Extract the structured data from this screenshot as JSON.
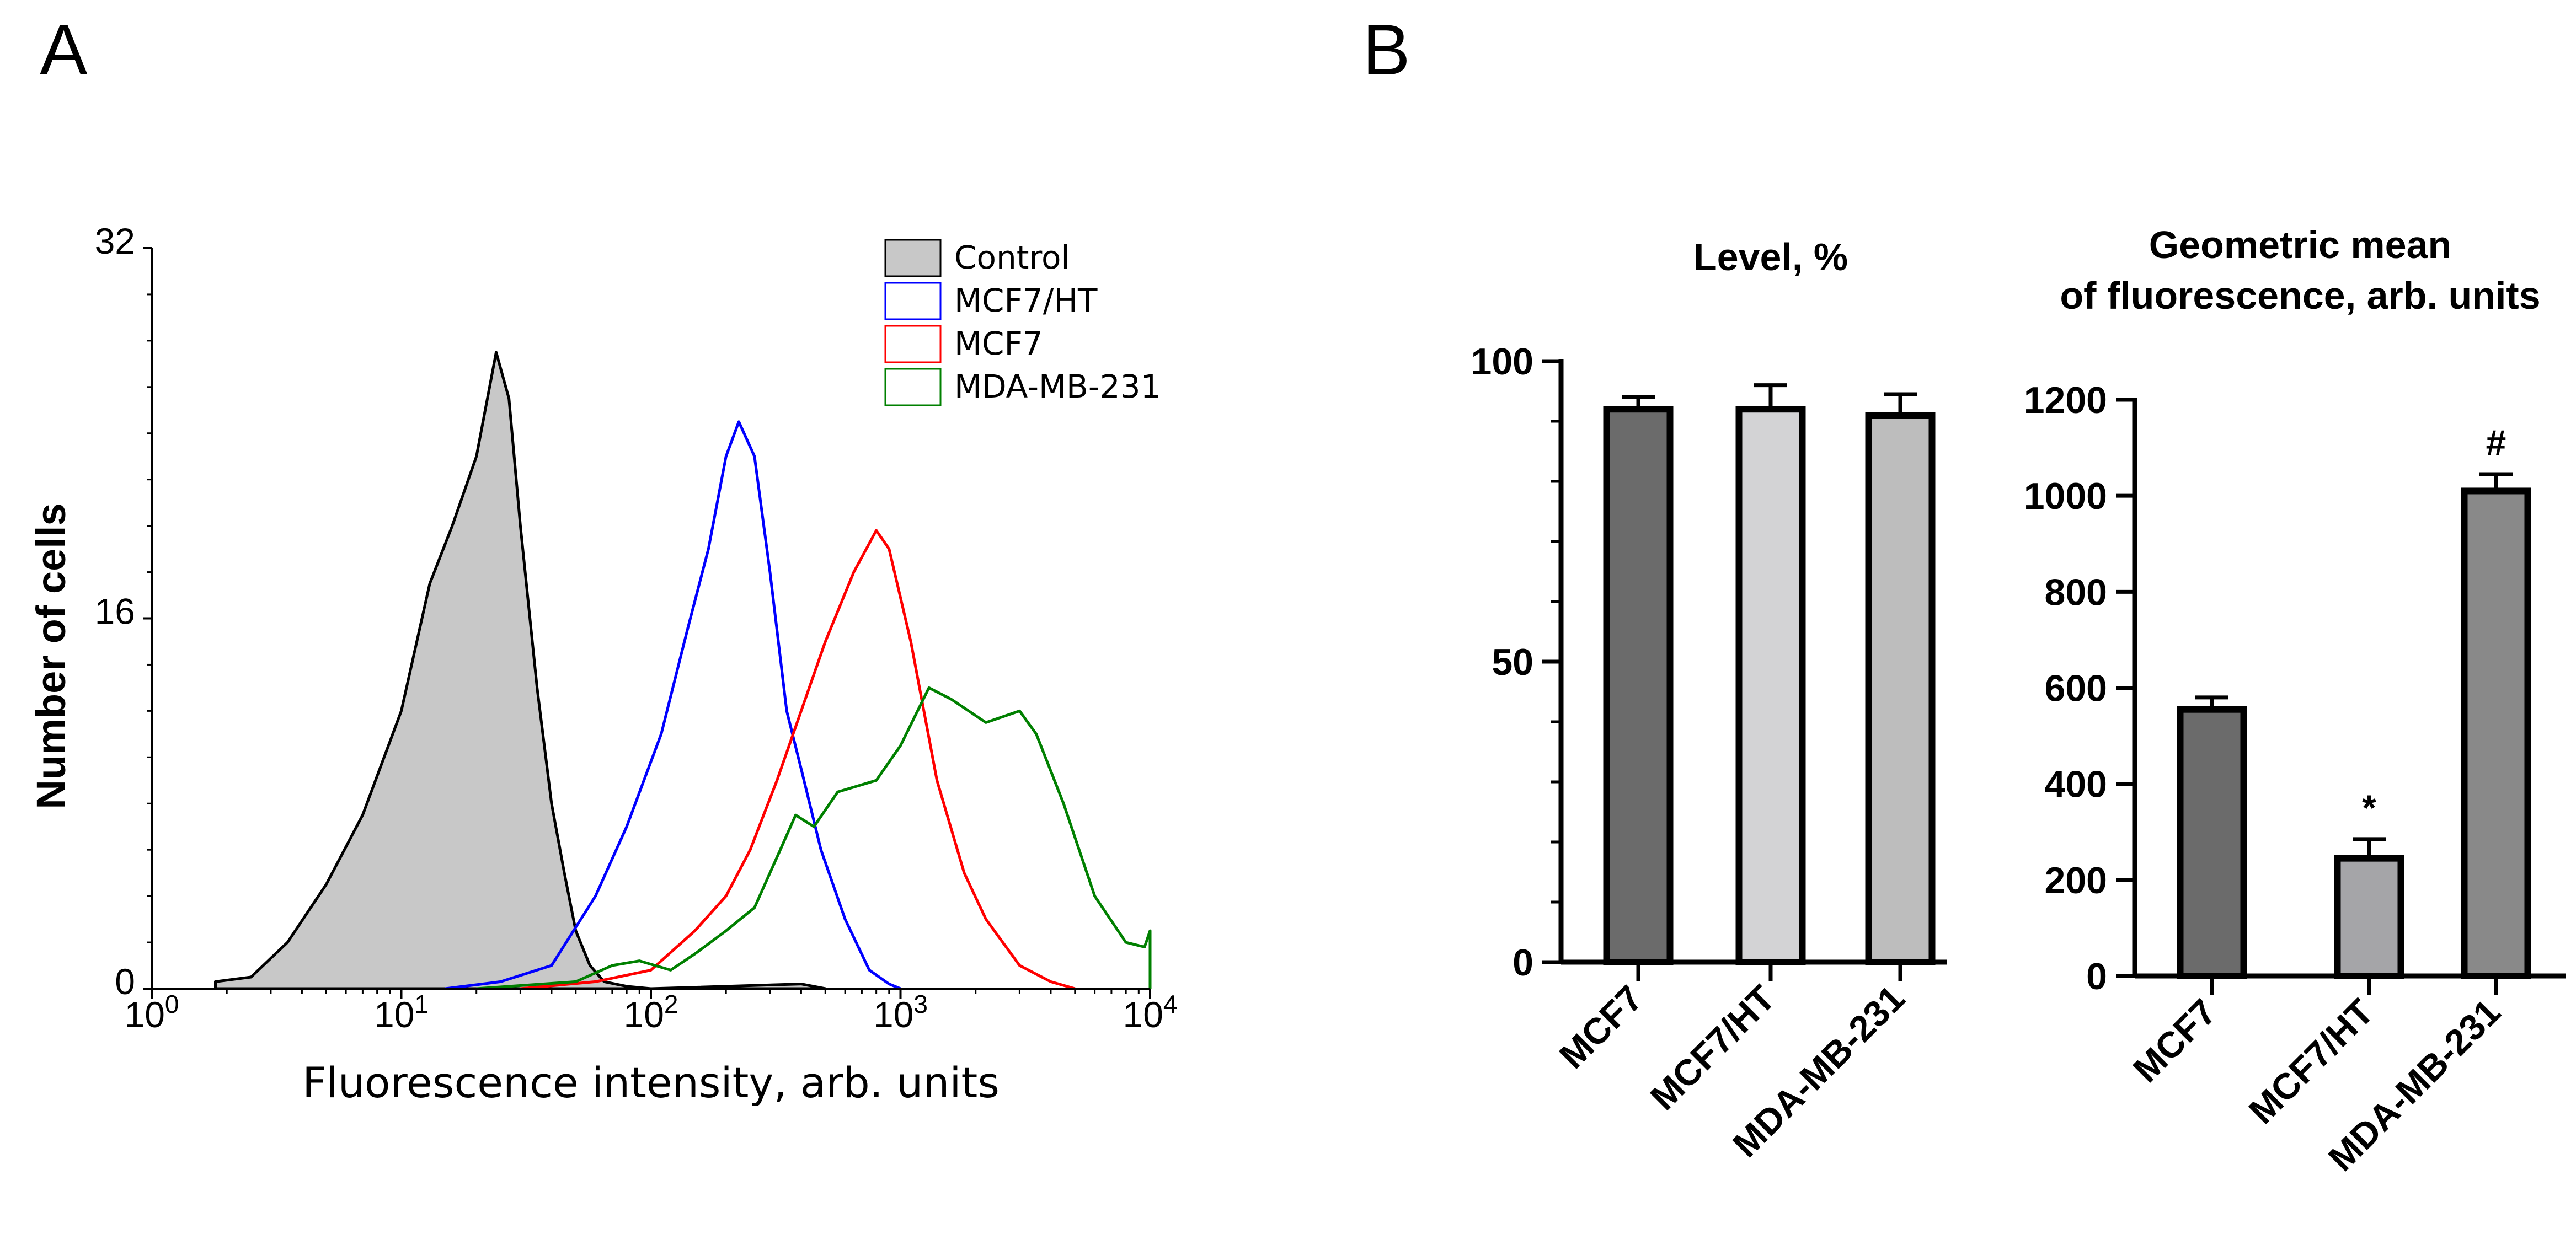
{
  "panels": {
    "a": "A",
    "b": "B"
  },
  "chart_data": [
    {
      "type": "area",
      "panel": "A",
      "title": "",
      "xlabel": "Fluorescence intensity, arb. units",
      "ylabel": "Number of cells",
      "x_scale": "log",
      "xlim": [
        1,
        10000
      ],
      "ylim": [
        0,
        32
      ],
      "x_ticks": [
        1,
        10,
        100,
        1000,
        10000
      ],
      "y_tick_labels": [
        "0",
        "16",
        "32"
      ],
      "y_ticks": [
        0,
        16,
        32
      ],
      "legend_position": "top-right",
      "series": [
        {
          "name": "Control",
          "color": "#000000",
          "fill": "#c8c8c8",
          "points": [
            [
              1.8,
              0.3
            ],
            [
              2.5,
              0.5
            ],
            [
              3.5,
              2
            ],
            [
              5,
              4.5
            ],
            [
              7,
              7.5
            ],
            [
              10,
              12
            ],
            [
              13,
              17.5
            ],
            [
              16,
              20
            ],
            [
              20,
              23
            ],
            [
              24,
              27.5
            ],
            [
              27,
              25.5
            ],
            [
              30,
              20
            ],
            [
              35,
              13
            ],
            [
              40,
              8
            ],
            [
              45,
              5
            ],
            [
              50,
              2.5
            ],
            [
              57,
              1
            ],
            [
              65,
              0.3
            ],
            [
              80,
              0.1
            ],
            [
              100,
              0
            ],
            [
              400,
              0.2
            ],
            [
              500,
              0
            ]
          ]
        },
        {
          "name": "MCF7/HT",
          "color": "#0000ff",
          "fill": "none",
          "points": [
            [
              15,
              0
            ],
            [
              25,
              0.3
            ],
            [
              40,
              1
            ],
            [
              60,
              4
            ],
            [
              80,
              7
            ],
            [
              110,
              11
            ],
            [
              140,
              15.5
            ],
            [
              170,
              19
            ],
            [
              200,
              23
            ],
            [
              225,
              24.5
            ],
            [
              260,
              23
            ],
            [
              300,
              18
            ],
            [
              350,
              12
            ],
            [
              400,
              9.5
            ],
            [
              480,
              6
            ],
            [
              600,
              3
            ],
            [
              750,
              0.8
            ],
            [
              900,
              0.2
            ],
            [
              1000,
              0
            ]
          ]
        },
        {
          "name": "MCF7",
          "color": "#ff0000",
          "fill": "none",
          "points": [
            [
              30,
              0
            ],
            [
              60,
              0.3
            ],
            [
              100,
              0.8
            ],
            [
              150,
              2.5
            ],
            [
              200,
              4
            ],
            [
              250,
              6
            ],
            [
              320,
              9
            ],
            [
              400,
              12
            ],
            [
              500,
              15
            ],
            [
              650,
              18
            ],
            [
              800,
              19.8
            ],
            [
              900,
              19
            ],
            [
              1100,
              15
            ],
            [
              1400,
              9
            ],
            [
              1800,
              5
            ],
            [
              2200,
              3
            ],
            [
              3000,
              1
            ],
            [
              4000,
              0.3
            ],
            [
              5000,
              0
            ]
          ]
        },
        {
          "name": "MDA-MB-231",
          "color": "#008000",
          "fill": "none",
          "points": [
            [
              20,
              0
            ],
            [
              50,
              0.3
            ],
            [
              70,
              1
            ],
            [
              90,
              1.2
            ],
            [
              120,
              0.8
            ],
            [
              150,
              1.5
            ],
            [
              200,
              2.5
            ],
            [
              260,
              3.5
            ],
            [
              330,
              6
            ],
            [
              380,
              7.5
            ],
            [
              450,
              7
            ],
            [
              560,
              8.5
            ],
            [
              800,
              9
            ],
            [
              1000,
              10.5
            ],
            [
              1300,
              13
            ],
            [
              1600,
              12.5
            ],
            [
              2200,
              11.5
            ],
            [
              3000,
              12
            ],
            [
              3500,
              11
            ],
            [
              4500,
              8
            ],
            [
              6000,
              4
            ],
            [
              8000,
              2
            ],
            [
              9500,
              1.8
            ],
            [
              10000,
              2.5
            ],
            [
              10000,
              0
            ]
          ]
        }
      ]
    },
    {
      "type": "bar",
      "panel": "B",
      "title": "Level, %",
      "xlabel": "",
      "ylabel": "",
      "categories": [
        "MCF7",
        "MCF7/HT",
        "MDA-MB-231"
      ],
      "values": [
        92,
        92,
        91
      ],
      "errors": [
        2,
        4,
        3.5
      ],
      "bar_colors": [
        "#6b6b6b",
        "#d3d3d5",
        "#bdbdbd"
      ],
      "ylim": [
        0,
        100
      ],
      "y_tick_labels": [
        "0",
        "50",
        "100"
      ],
      "y_ticks": [
        0,
        50,
        100
      ],
      "annotations": [
        "",
        "",
        ""
      ]
    },
    {
      "type": "bar",
      "panel": "B",
      "title": "Geometric mean\nof fluorescence, arb. units",
      "title_lines": [
        "Geometric mean",
        "of fluorescence, arb. units"
      ],
      "xlabel": "",
      "ylabel": "",
      "categories": [
        "MCF7",
        "MCF7/HT",
        "MDA-MB-231"
      ],
      "values": [
        555,
        245,
        1010
      ],
      "errors": [
        25,
        40,
        35
      ],
      "bar_colors": [
        "#6b6b6b",
        "#a5a5a8",
        "#898989"
      ],
      "ylim": [
        0,
        1200
      ],
      "y_tick_labels": [
        "0",
        "200",
        "400",
        "600",
        "800",
        "1000",
        "1200"
      ],
      "y_ticks": [
        0,
        200,
        400,
        600,
        800,
        1000,
        1200
      ],
      "annotations": [
        "",
        "*",
        "#"
      ]
    }
  ]
}
